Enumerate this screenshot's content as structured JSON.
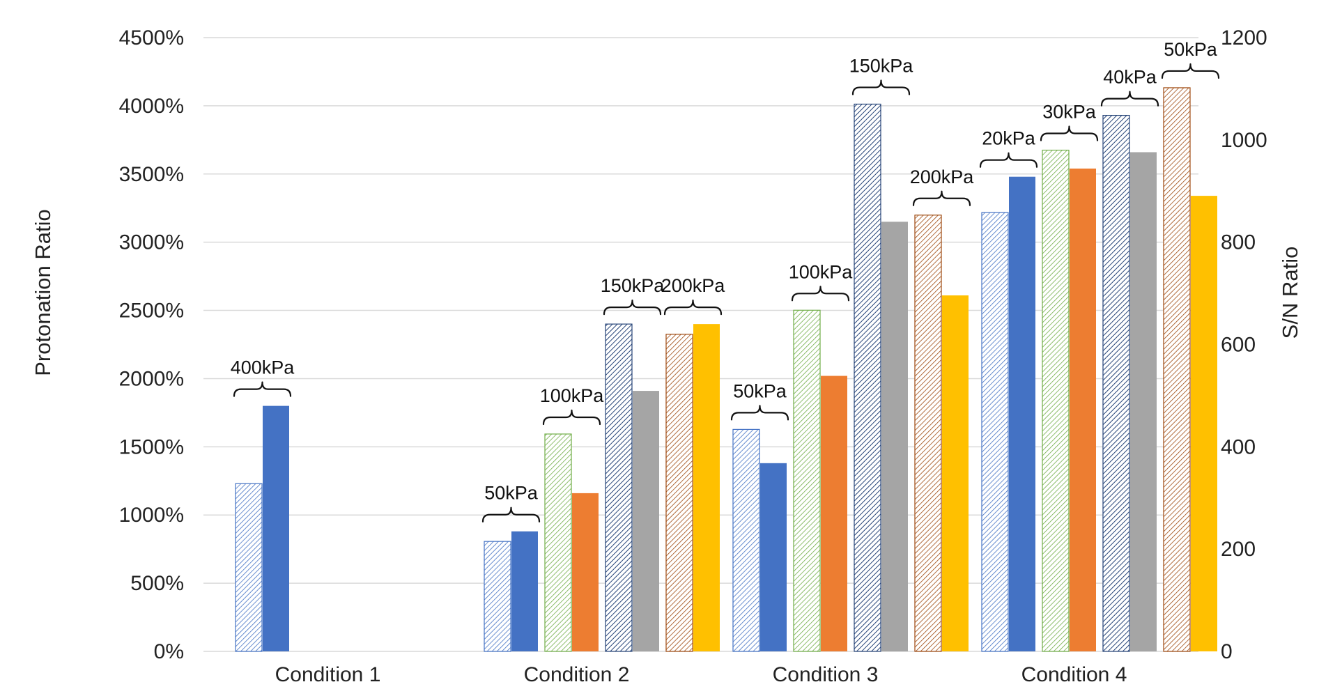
{
  "chart_data": {
    "type": "bar",
    "categories": [
      "Condition 1",
      "Condition 2",
      "Condition 3",
      "Condition 4"
    ],
    "ylabel_left": "Protonation Ratio",
    "ylabel_right": "S/N Ratio",
    "left_axis": {
      "min": 0,
      "max": 4500,
      "step": 500,
      "ticks": [
        "0%",
        "500%",
        "1000%",
        "1500%",
        "2000%",
        "2500%",
        "3000%",
        "3500%",
        "4000%",
        "4500%"
      ]
    },
    "right_axis": {
      "min": 0,
      "max": 1200,
      "step": 200,
      "ticks": [
        "0",
        "200",
        "400",
        "600",
        "800",
        "1000",
        "1200"
      ]
    },
    "grid": "horizontal",
    "legend": "none",
    "groups": [
      {
        "category": "Condition 1",
        "pairs": [
          {
            "label": "400kPa",
            "protonation_ratio_pct": 1800,
            "sn_ratio": 328,
            "color": "#4472c4",
            "pattern": "diag-light"
          }
        ]
      },
      {
        "category": "Condition 2",
        "pairs": [
          {
            "label": "50kPa",
            "protonation_ratio_pct": 880,
            "sn_ratio": 215,
            "color": "#4472c4",
            "pattern": "diag-light"
          },
          {
            "label": "100kPa",
            "protonation_ratio_pct": 1160,
            "sn_ratio": 425,
            "color": "#ed7d31",
            "pattern": "diag-green"
          },
          {
            "label": "150kPa",
            "protonation_ratio_pct": 1910,
            "sn_ratio": 640,
            "color": "#a5a5a5",
            "pattern": "diag-navy"
          },
          {
            "label": "200kPa",
            "protonation_ratio_pct": 2400,
            "sn_ratio": 620,
            "color": "#ffc000",
            "pattern": "diag-brown"
          }
        ]
      },
      {
        "category": "Condition 3",
        "pairs": [
          {
            "label": "50kPa",
            "protonation_ratio_pct": 1380,
            "sn_ratio": 434,
            "color": "#4472c4",
            "pattern": "diag-light"
          },
          {
            "label": "100kPa",
            "protonation_ratio_pct": 2020,
            "sn_ratio": 667,
            "color": "#ed7d31",
            "pattern": "diag-green"
          },
          {
            "label": "150kPa",
            "protonation_ratio_pct": 3150,
            "sn_ratio": 1070,
            "color": "#a5a5a5",
            "pattern": "diag-navy"
          },
          {
            "label": "200kPa",
            "protonation_ratio_pct": 2610,
            "sn_ratio": 853,
            "color": "#ffc000",
            "pattern": "diag-brown"
          }
        ]
      },
      {
        "category": "Condition 4",
        "pairs": [
          {
            "label": "20kPa",
            "protonation_ratio_pct": 3480,
            "sn_ratio": 858,
            "color": "#4472c4",
            "pattern": "diag-light"
          },
          {
            "label": "30kPa",
            "protonation_ratio_pct": 3540,
            "sn_ratio": 980,
            "color": "#ed7d31",
            "pattern": "diag-green"
          },
          {
            "label": "40kPa",
            "protonation_ratio_pct": 3660,
            "sn_ratio": 1048,
            "color": "#a5a5a5",
            "pattern": "diag-navy"
          },
          {
            "label": "50kPa",
            "protonation_ratio_pct": 3340,
            "sn_ratio": 1102,
            "color": "#ffc000",
            "pattern": "diag-brown"
          }
        ]
      }
    ]
  }
}
